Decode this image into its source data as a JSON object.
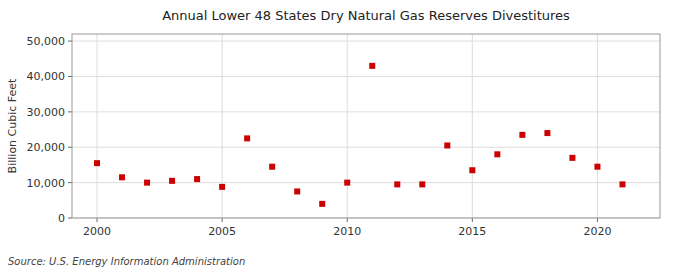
{
  "chart_data": {
    "type": "scatter",
    "title": "Annual Lower 48 States Dry Natural Gas Reserves Divestitures",
    "y_label": "Billion Cubic Feet",
    "annotations": [
      "Source: U.S. Energy Information Administration"
    ],
    "x": [
      2000,
      2001,
      2002,
      2003,
      2004,
      2005,
      2006,
      2007,
      2008,
      2009,
      2010,
      2011,
      2012,
      2013,
      2014,
      2015,
      2016,
      2017,
      2018,
      2019,
      2020,
      2021
    ],
    "values": [
      15500,
      11500,
      10000,
      10500,
      11000,
      8800,
      22500,
      14500,
      7500,
      4000,
      10000,
      43000,
      9500,
      9500,
      20500,
      13500,
      18000,
      23500,
      24000,
      17000,
      14500,
      9500
    ],
    "color": "#cc0000",
    "marker": "square",
    "xlim": [
      1999,
      2022.5
    ],
    "ylim": [
      0,
      52000
    ],
    "xticks": [
      2000,
      2005,
      2010,
      2015,
      2020
    ],
    "yticks": [
      0,
      {
        "value": 10000,
        "label": "10,000"
      },
      {
        "value": 20000,
        "label": "20,000"
      },
      {
        "value": 30000,
        "label": "30,000"
      },
      {
        "value": 40000,
        "label": "40,000"
      },
      {
        "value": 50000,
        "label": "50,000"
      }
    ],
    "grid": true
  }
}
